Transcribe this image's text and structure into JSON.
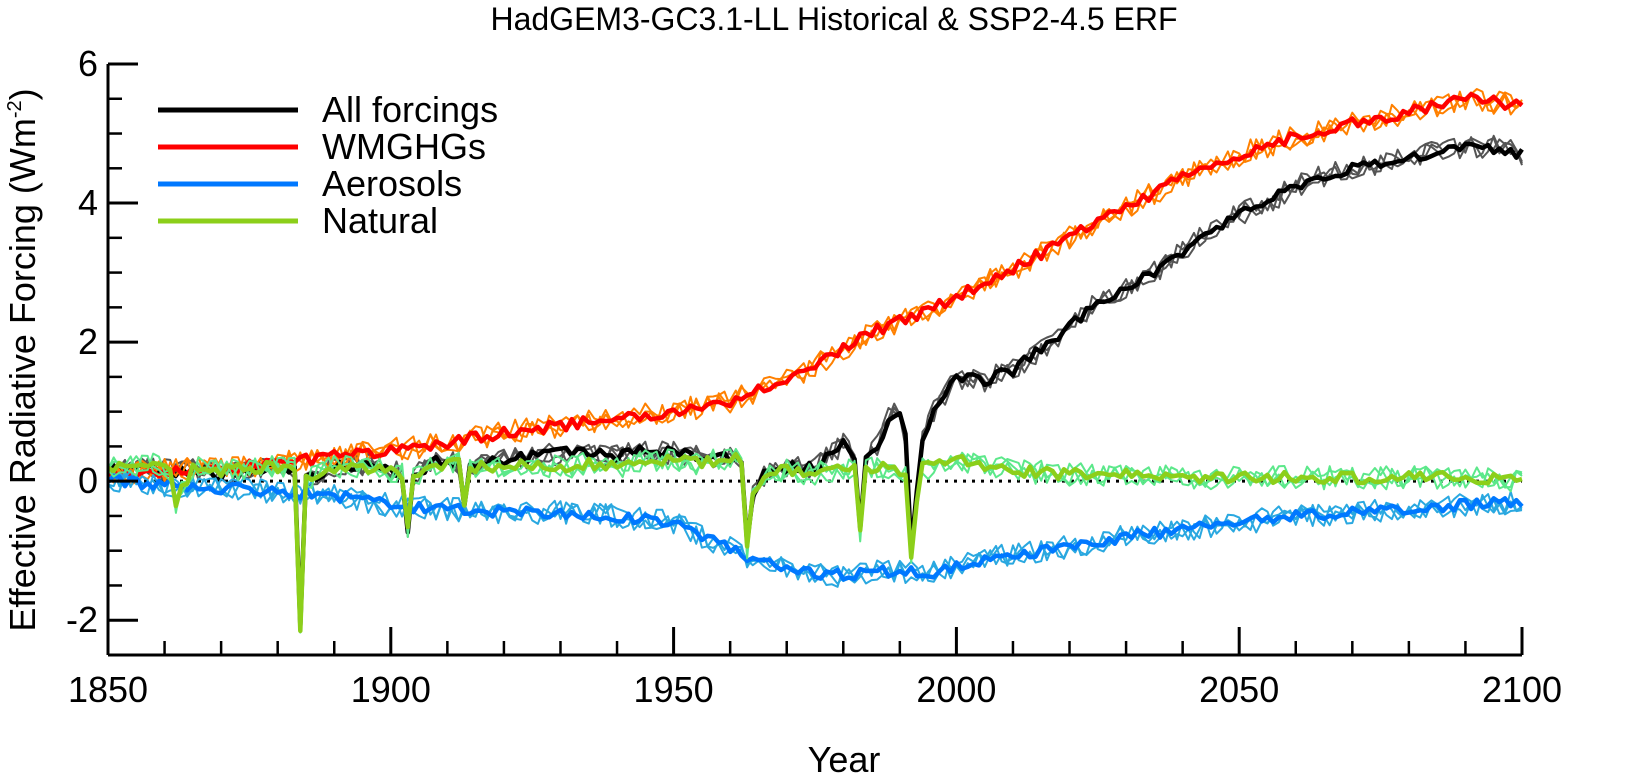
{
  "chart_data": {
    "type": "line",
    "title": "HadGEM3-GC3.1-LL Historical & SSP2-4.5 ERF",
    "xlabel": "Year",
    "ylabel": "Effective Radiative Forcing (Wm",
    "ylabel_superscript": "-2",
    "ylabel_close": ")",
    "xlim": [
      1850,
      2100
    ],
    "ylim": [
      -2.5,
      6.0
    ],
    "xticks": [
      1850,
      1900,
      1950,
      2000,
      2050,
      2100
    ],
    "xtick_labels": [
      "1850",
      "1900",
      "1950",
      "2000",
      "2050",
      "2100"
    ],
    "yticks": [
      -2,
      0,
      2,
      4,
      6
    ],
    "ytick_labels": [
      "-2",
      "0",
      "2",
      "4",
      "6"
    ],
    "zero_line": "dotted",
    "legend_position": "top-left",
    "series": [
      {
        "name": "All forcings",
        "color": "#000000",
        "member_color": "#555555",
        "x": [
          1850,
          1855,
          1860,
          1865,
          1870,
          1875,
          1880,
          1883,
          1884,
          1885,
          1890,
          1895,
          1900,
          1902,
          1903,
          1904,
          1908,
          1912,
          1913,
          1914,
          1920,
          1925,
          1930,
          1935,
          1940,
          1945,
          1950,
          1955,
          1960,
          1962,
          1963,
          1964,
          1966,
          1970,
          1975,
          1978,
          1980,
          1981,
          1982,
          1983,
          1984,
          1986,
          1988,
          1990,
          1991,
          1992,
          1993,
          1994,
          1996,
          2000,
          2005,
          2010,
          2015,
          2020,
          2025,
          2030,
          2035,
          2040,
          2045,
          2050,
          2055,
          2060,
          2065,
          2070,
          2075,
          2080,
          2085,
          2090,
          2095,
          2100
        ],
        "values": [
          0.2,
          0.2,
          0.15,
          0.15,
          0.1,
          0.15,
          0.2,
          0.2,
          -2.1,
          0.0,
          0.2,
          0.25,
          0.2,
          0.1,
          -0.7,
          0.1,
          0.3,
          0.25,
          -0.3,
          0.2,
          0.3,
          0.35,
          0.4,
          0.4,
          0.35,
          0.45,
          0.4,
          0.35,
          0.35,
          0.3,
          -0.95,
          -0.2,
          0.1,
          0.2,
          0.2,
          0.4,
          0.55,
          0.5,
          0.3,
          -0.6,
          0.3,
          0.5,
          0.9,
          1.0,
          0.6,
          -1.0,
          -0.2,
          0.6,
          1.0,
          1.5,
          1.45,
          1.6,
          1.9,
          2.2,
          2.6,
          2.75,
          3.0,
          3.3,
          3.6,
          3.85,
          4.0,
          4.25,
          4.4,
          4.5,
          4.55,
          4.65,
          4.75,
          4.8,
          4.8,
          4.7
        ]
      },
      {
        "name": "WMGHGs",
        "color": "#ff0000",
        "member_color": "#ff8000",
        "x": [
          1850,
          1860,
          1870,
          1880,
          1890,
          1900,
          1910,
          1920,
          1930,
          1940,
          1950,
          1960,
          1970,
          1980,
          1985,
          1990,
          1995,
          2000,
          2010,
          2020,
          2030,
          2040,
          2050,
          2060,
          2070,
          2080,
          2090,
          2100
        ],
        "values": [
          0.1,
          0.15,
          0.2,
          0.25,
          0.35,
          0.45,
          0.55,
          0.7,
          0.8,
          0.9,
          1.0,
          1.15,
          1.45,
          1.9,
          2.15,
          2.3,
          2.45,
          2.65,
          3.05,
          3.5,
          3.95,
          4.35,
          4.7,
          4.95,
          5.15,
          5.3,
          5.5,
          5.4
        ]
      },
      {
        "name": "Aerosols",
        "color": "#0078ff",
        "member_color": "#2aa8e0",
        "x": [
          1850,
          1860,
          1870,
          1880,
          1890,
          1900,
          1910,
          1920,
          1930,
          1940,
          1950,
          1955,
          1960,
          1965,
          1970,
          1975,
          1980,
          1985,
          1990,
          1995,
          2000,
          2010,
          2020,
          2030,
          2040,
          2050,
          2060,
          2070,
          2080,
          2090,
          2100
        ],
        "values": [
          0.0,
          -0.05,
          -0.1,
          -0.15,
          -0.2,
          -0.35,
          -0.4,
          -0.45,
          -0.45,
          -0.5,
          -0.6,
          -0.8,
          -0.95,
          -1.15,
          -1.25,
          -1.35,
          -1.35,
          -1.3,
          -1.3,
          -1.35,
          -1.2,
          -1.05,
          -0.95,
          -0.8,
          -0.7,
          -0.6,
          -0.5,
          -0.45,
          -0.4,
          -0.35,
          -0.3
        ]
      },
      {
        "name": "Natural",
        "color": "#8ccf1a",
        "member_color": "#5ce88a",
        "x": [
          1850,
          1855,
          1860,
          1861,
          1862,
          1865,
          1870,
          1875,
          1880,
          1883,
          1884,
          1885,
          1888,
          1890,
          1895,
          1900,
          1902,
          1903,
          1904,
          1908,
          1912,
          1913,
          1914,
          1920,
          1925,
          1930,
          1935,
          1940,
          1945,
          1950,
          1955,
          1960,
          1962,
          1963,
          1964,
          1966,
          1970,
          1975,
          1978,
          1980,
          1982,
          1983,
          1984,
          1986,
          1988,
          1990,
          1991,
          1992,
          1993,
          1994,
          1996,
          2000,
          2010,
          2020,
          2030,
          2040,
          2050,
          2060,
          2070,
          2080,
          2090,
          2100
        ],
        "values": [
          0.2,
          0.2,
          0.25,
          0.1,
          -0.3,
          0.2,
          0.15,
          0.2,
          0.2,
          0.2,
          -2.1,
          0.0,
          0.15,
          0.2,
          0.2,
          0.15,
          0.1,
          -0.7,
          0.1,
          0.2,
          0.25,
          -0.3,
          0.2,
          0.2,
          0.25,
          0.2,
          0.25,
          0.2,
          0.3,
          0.3,
          0.25,
          0.35,
          0.3,
          -0.95,
          -0.2,
          0.1,
          0.15,
          0.1,
          0.15,
          0.2,
          0.2,
          -0.75,
          0.2,
          0.2,
          0.2,
          0.15,
          0.1,
          -1.05,
          -0.3,
          0.2,
          0.2,
          0.3,
          0.15,
          0.1,
          0.1,
          0.05,
          0.05,
          0.05,
          0.05,
          0.05,
          0.05,
          0.0
        ]
      }
    ]
  }
}
